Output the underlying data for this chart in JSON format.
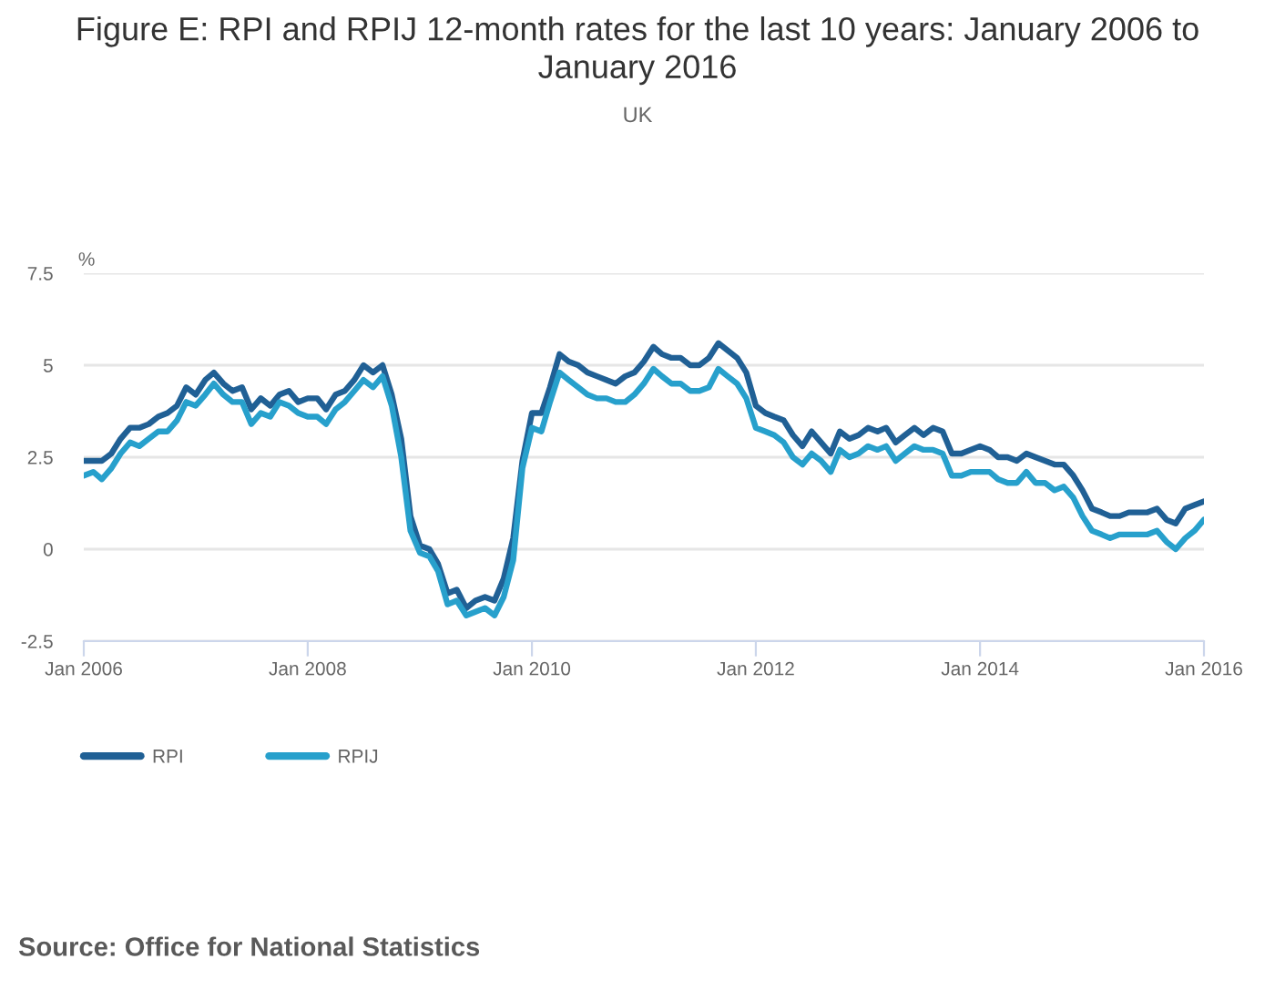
{
  "chart_data": {
    "type": "line",
    "title": "Figure E: RPI and RPIJ 12-month rates for the last 10 years: January 2006 to January 2016",
    "subtitle": "UK",
    "ylabel": "%",
    "annotations": [
      "Source: Office for National Statistics"
    ],
    "x": [
      "2006-01",
      "2006-02",
      "2006-03",
      "2006-04",
      "2006-05",
      "2006-06",
      "2006-07",
      "2006-08",
      "2006-09",
      "2006-10",
      "2006-11",
      "2006-12",
      "2007-01",
      "2007-02",
      "2007-03",
      "2007-04",
      "2007-05",
      "2007-06",
      "2007-07",
      "2007-08",
      "2007-09",
      "2007-10",
      "2007-11",
      "2007-12",
      "2008-01",
      "2008-02",
      "2008-03",
      "2008-04",
      "2008-05",
      "2008-06",
      "2008-07",
      "2008-08",
      "2008-09",
      "2008-10",
      "2008-11",
      "2008-12",
      "2009-01",
      "2009-02",
      "2009-03",
      "2009-04",
      "2009-05",
      "2009-06",
      "2009-07",
      "2009-08",
      "2009-09",
      "2009-10",
      "2009-11",
      "2009-12",
      "2010-01",
      "2010-02",
      "2010-03",
      "2010-04",
      "2010-05",
      "2010-06",
      "2010-07",
      "2010-08",
      "2010-09",
      "2010-10",
      "2010-11",
      "2010-12",
      "2011-01",
      "2011-02",
      "2011-03",
      "2011-04",
      "2011-05",
      "2011-06",
      "2011-07",
      "2011-08",
      "2011-09",
      "2011-10",
      "2011-11",
      "2011-12",
      "2012-01",
      "2012-02",
      "2012-03",
      "2012-04",
      "2012-05",
      "2012-06",
      "2012-07",
      "2012-08",
      "2012-09",
      "2012-10",
      "2012-11",
      "2012-12",
      "2013-01",
      "2013-02",
      "2013-03",
      "2013-04",
      "2013-05",
      "2013-06",
      "2013-07",
      "2013-08",
      "2013-09",
      "2013-10",
      "2013-11",
      "2013-12",
      "2014-01",
      "2014-02",
      "2014-03",
      "2014-04",
      "2014-05",
      "2014-06",
      "2014-07",
      "2014-08",
      "2014-09",
      "2014-10",
      "2014-11",
      "2014-12",
      "2015-01",
      "2015-02",
      "2015-03",
      "2015-04",
      "2015-05",
      "2015-06",
      "2015-07",
      "2015-08",
      "2015-09",
      "2015-10",
      "2015-11",
      "2015-12",
      "2016-01"
    ],
    "series": [
      {
        "name": "RPI",
        "color": "#206095",
        "values": [
          2.4,
          2.4,
          2.4,
          2.6,
          3.0,
          3.3,
          3.3,
          3.4,
          3.6,
          3.7,
          3.9,
          4.4,
          4.2,
          4.6,
          4.8,
          4.5,
          4.3,
          4.4,
          3.8,
          4.1,
          3.9,
          4.2,
          4.3,
          4.0,
          4.1,
          4.1,
          3.8,
          4.2,
          4.3,
          4.6,
          5.0,
          4.8,
          5.0,
          4.2,
          3.0,
          0.9,
          0.1,
          0.0,
          -0.4,
          -1.2,
          -1.1,
          -1.6,
          -1.4,
          -1.3,
          -1.4,
          -0.8,
          0.3,
          2.4,
          3.7,
          3.7,
          4.4,
          5.3,
          5.1,
          5.0,
          4.8,
          4.7,
          4.6,
          4.5,
          4.7,
          4.8,
          5.1,
          5.5,
          5.3,
          5.2,
          5.2,
          5.0,
          5.0,
          5.2,
          5.6,
          5.4,
          5.2,
          4.8,
          3.9,
          3.7,
          3.6,
          3.5,
          3.1,
          2.8,
          3.2,
          2.9,
          2.6,
          3.2,
          3.0,
          3.1,
          3.3,
          3.2,
          3.3,
          2.9,
          3.1,
          3.3,
          3.1,
          3.3,
          3.2,
          2.6,
          2.6,
          2.7,
          2.8,
          2.7,
          2.5,
          2.5,
          2.4,
          2.6,
          2.5,
          2.4,
          2.3,
          2.3,
          2.0,
          1.6,
          1.1,
          1.0,
          0.9,
          0.9,
          1.0,
          1.0,
          1.0,
          1.1,
          0.8,
          0.7,
          1.1,
          1.2,
          1.3
        ]
      },
      {
        "name": "RPIJ",
        "color": "#27a0cc",
        "values": [
          2.0,
          2.1,
          1.9,
          2.2,
          2.6,
          2.9,
          2.8,
          3.0,
          3.2,
          3.2,
          3.5,
          4.0,
          3.9,
          4.2,
          4.5,
          4.2,
          4.0,
          4.0,
          3.4,
          3.7,
          3.6,
          4.0,
          3.9,
          3.7,
          3.6,
          3.6,
          3.4,
          3.8,
          4.0,
          4.3,
          4.6,
          4.4,
          4.7,
          3.9,
          2.5,
          0.5,
          -0.1,
          -0.2,
          -0.6,
          -1.5,
          -1.4,
          -1.8,
          -1.7,
          -1.6,
          -1.8,
          -1.3,
          -0.3,
          2.2,
          3.3,
          3.2,
          4.0,
          4.8,
          4.6,
          4.4,
          4.2,
          4.1,
          4.1,
          4.0,
          4.0,
          4.2,
          4.5,
          4.9,
          4.7,
          4.5,
          4.5,
          4.3,
          4.3,
          4.4,
          4.9,
          4.7,
          4.5,
          4.1,
          3.3,
          3.2,
          3.1,
          2.9,
          2.5,
          2.3,
          2.6,
          2.4,
          2.1,
          2.7,
          2.5,
          2.6,
          2.8,
          2.7,
          2.8,
          2.4,
          2.6,
          2.8,
          2.7,
          2.7,
          2.6,
          2.0,
          2.0,
          2.1,
          2.1,
          2.1,
          1.9,
          1.8,
          1.8,
          2.1,
          1.8,
          1.8,
          1.6,
          1.7,
          1.4,
          0.9,
          0.5,
          0.4,
          0.3,
          0.4,
          0.4,
          0.4,
          0.4,
          0.5,
          0.2,
          0.0,
          0.3,
          0.5,
          0.8
        ]
      }
    ],
    "xlim": [
      "2006-01",
      "2016-01"
    ],
    "xticks": [
      {
        "value": "2006-01",
        "label": "Jan 2006"
      },
      {
        "value": "2008-01",
        "label": "Jan 2008"
      },
      {
        "value": "2010-01",
        "label": "Jan 2010"
      },
      {
        "value": "2012-01",
        "label": "Jan 2012"
      },
      {
        "value": "2014-01",
        "label": "Jan 2014"
      },
      {
        "value": "2016-01",
        "label": "Jan 2016"
      }
    ],
    "ylim": [
      -2.5,
      7.5
    ],
    "yticks": [
      -2.5,
      0,
      2.5,
      5,
      7.5
    ],
    "grid": "y",
    "legend": "bottom left",
    "line_style": "solid"
  }
}
